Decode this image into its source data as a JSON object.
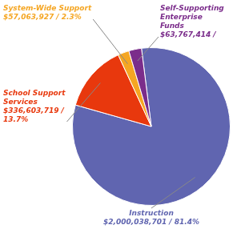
{
  "chart_data": {
    "type": "pie",
    "values": [
      81.4,
      13.7,
      2.3,
      2.6
    ],
    "colors": [
      "#6065B0",
      "#E8380D",
      "#F5A623",
      "#7B2D8B"
    ],
    "annotations": [
      {
        "text": "Instruction\n$2,000,038,701 / 81.4%",
        "color": "#6065B0"
      },
      {
        "text": "School Support\nServices\n$336,603,719 /\n13.7%",
        "color": "#E8380D"
      },
      {
        "text": "System-Wide Support\n$57,063,927 / 2.3%",
        "color": "#F5A623"
      },
      {
        "text": "Self-Supporting\nEnterprise\nFunds\n$63,767,414 /",
        "color": "#7B2D8B"
      }
    ]
  }
}
